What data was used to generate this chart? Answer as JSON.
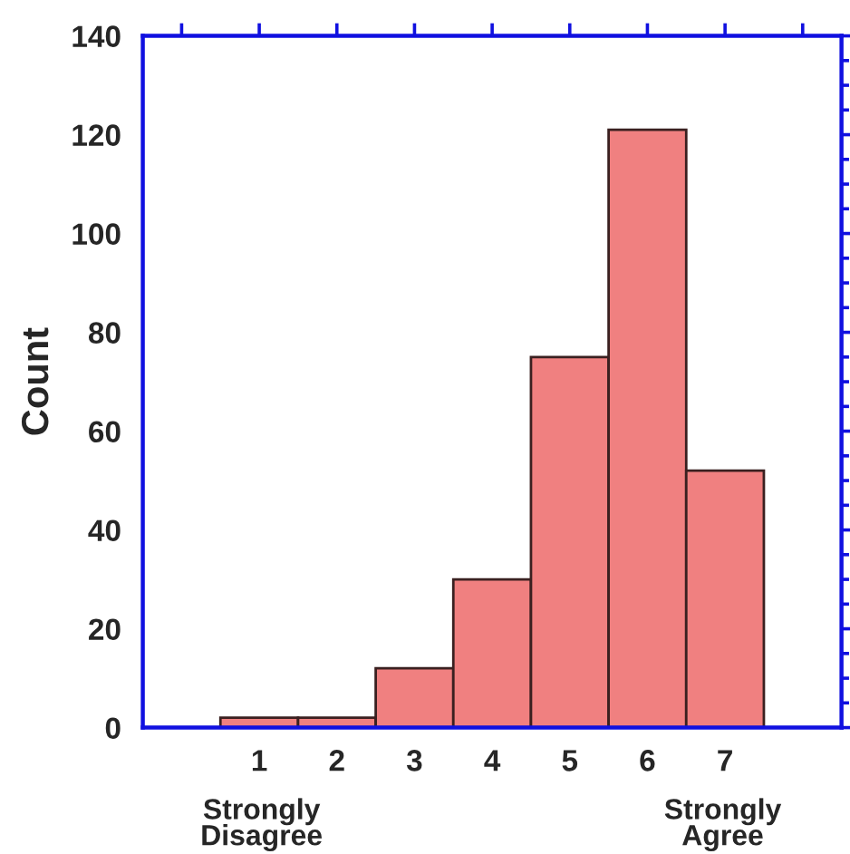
{
  "chart_data": {
    "type": "histogram",
    "ylabel": "Count",
    "bins": [
      0.5,
      1.5,
      2.5,
      3.5,
      4.5,
      5.5,
      6.5,
      7.5
    ],
    "values": [
      2,
      2,
      12,
      30,
      75,
      121,
      52
    ],
    "color": "#f08080",
    "xlim": [
      -0.5,
      8.5
    ],
    "xticks": [
      {
        "value": 0,
        "label": null
      },
      1,
      2,
      3,
      4,
      5,
      6,
      7,
      {
        "value": 8,
        "label": null
      }
    ],
    "ylim": [
      0,
      140
    ],
    "yticks": [
      0,
      20,
      40,
      60,
      80,
      100,
      120,
      140
    ],
    "grid": false,
    "annotations": [
      "Strongly\nDisagree",
      "Strongly\nAgree"
    ]
  }
}
